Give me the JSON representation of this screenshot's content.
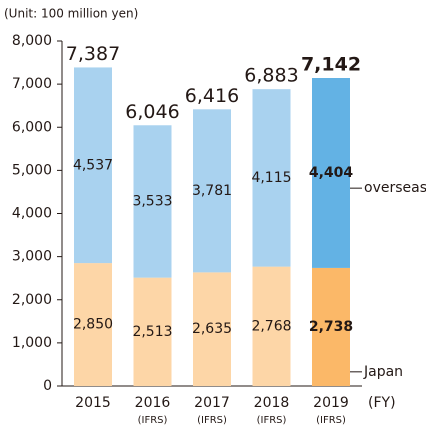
{
  "chart_data": {
    "type": "stacked-bar",
    "unit_label": "(Unit: 100 million yen)",
    "x_axis_label": "(FY)",
    "categories": [
      "2015",
      "2016",
      "2017",
      "2018",
      "2019"
    ],
    "category_notes": [
      null,
      "(IFRS)",
      "(IFRS)",
      "(IFRS)",
      "(IFRS)"
    ],
    "emphasis": [
      false,
      false,
      false,
      false,
      true
    ],
    "series": [
      {
        "name": "Japan",
        "colors": [
          "#fdd6a7",
          "#fdd6a7",
          "#fdd6a7",
          "#fdd6a7",
          "#fbb868"
        ],
        "values": [
          2850,
          2513,
          2635,
          2768,
          2738
        ],
        "value_labels": [
          "2,850",
          "2,513",
          "2,635",
          "2,768",
          "2,738"
        ]
      },
      {
        "name": "overseas",
        "colors": [
          "#a9d2ef",
          "#a9d2ef",
          "#a9d2ef",
          "#a9d2ef",
          "#63b2e4"
        ],
        "values": [
          4537,
          3533,
          3781,
          4115,
          4404
        ],
        "value_labels": [
          "4,537",
          "3,533",
          "3,781",
          "4,115",
          "4,404"
        ]
      }
    ],
    "totals": [
      7387,
      6046,
      6416,
      6883,
      7142
    ],
    "total_labels": [
      "7,387",
      "6,046",
      "6,416",
      "6,883",
      "7,142"
    ],
    "ylim": [
      0,
      8000
    ],
    "yticks": [
      0,
      {
        "value": 1000,
        "label": "1,000"
      },
      {
        "value": 2000,
        "label": "2,000"
      },
      {
        "value": 3000,
        "label": "3,000"
      },
      {
        "value": 4000,
        "label": "4,000"
      },
      {
        "value": 5000,
        "label": "5,000"
      },
      {
        "value": 6000,
        "label": "6,000"
      },
      {
        "value": 7000,
        "label": "7,000"
      },
      {
        "value": 8000,
        "label": "8,000"
      }
    ]
  }
}
